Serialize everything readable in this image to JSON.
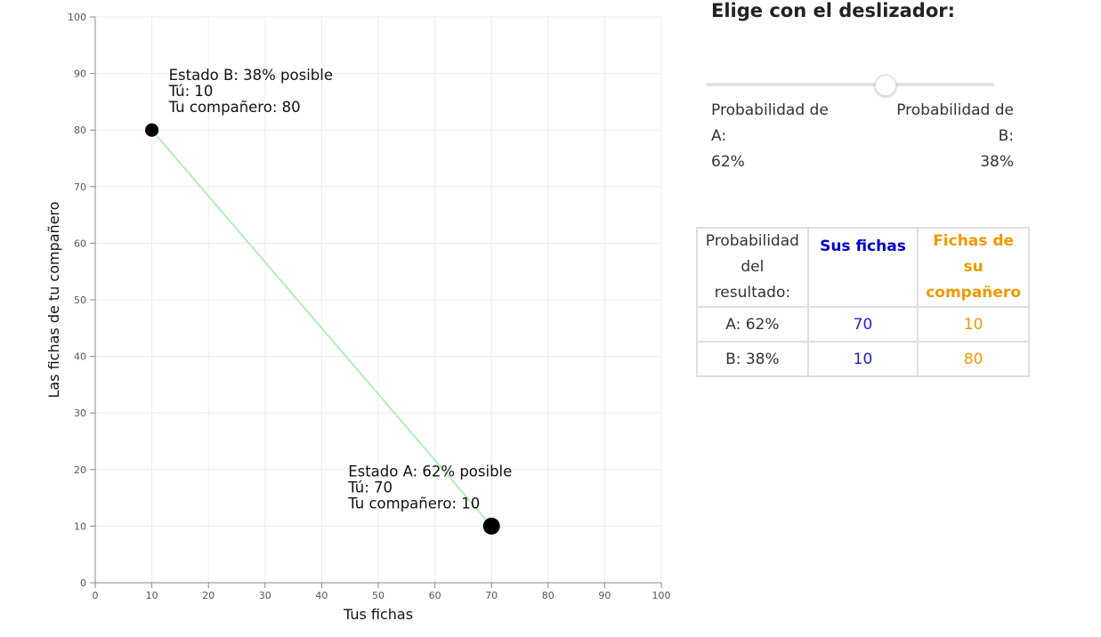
{
  "chart_data": {
    "type": "scatter",
    "xlabel": "Tus fichas",
    "ylabel": "Las fichas de tu compañero",
    "xlim": [
      0,
      100
    ],
    "ylim": [
      0,
      100
    ],
    "x_ticks": [
      0,
      10,
      20,
      30,
      40,
      50,
      60,
      70,
      80,
      90,
      100
    ],
    "y_ticks": [
      0,
      10,
      20,
      30,
      40,
      50,
      60,
      70,
      80,
      90,
      100
    ],
    "grid": true,
    "connector_color": "#90ee90",
    "points": [
      {
        "state": "A",
        "x": 70,
        "y": 10,
        "probability": 62,
        "lines": [
          "Estado A: 62% posible",
          "Tú: 70",
          "Tu compañero: 10"
        ]
      },
      {
        "state": "B",
        "x": 10,
        "y": 80,
        "probability": 38,
        "lines": [
          "Estado B: 38% posible",
          "Tú: 10",
          "Tu compañero: 80"
        ]
      }
    ]
  },
  "slider": {
    "title": "Elige con el deslizador:",
    "value_fraction_toward_b": 0.62,
    "left_label": [
      "Probabilidad de",
      "A:",
      "62%"
    ],
    "right_label": [
      "Probabilidad de",
      "B:",
      "38%"
    ]
  },
  "table": {
    "headers": {
      "probability": [
        "Probabilidad",
        "del resultado:"
      ],
      "you": "Sus fichas",
      "partner": [
        "Fichas de su",
        "compañero"
      ]
    },
    "rows": [
      {
        "outcome": "A: 62%",
        "you": "70",
        "partner": "10"
      },
      {
        "outcome": "B: 38%",
        "you": "10",
        "partner": "80"
      }
    ],
    "colors": {
      "you": "#0000cc",
      "partner": "#f09800"
    }
  }
}
